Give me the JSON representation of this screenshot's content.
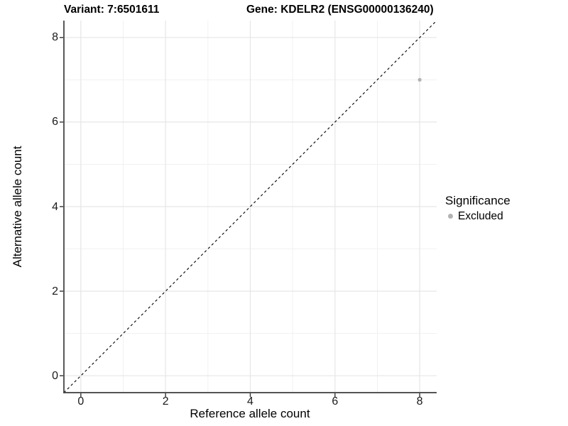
{
  "chart_data": {
    "type": "scatter",
    "title_left": "Variant: 7:6501611",
    "title_right": "Gene: KDELR2 (ENSG00000136240)",
    "xlabel": "Reference allele count",
    "ylabel": "Alternative allele count",
    "xlim": [
      -0.4,
      8.4
    ],
    "ylim": [
      -0.4,
      8.4
    ],
    "xticks": [
      0,
      2,
      4,
      6,
      8
    ],
    "yticks": [
      0,
      2,
      4,
      6,
      8
    ],
    "xminor": [
      1,
      3,
      5,
      7
    ],
    "yminor": [
      1,
      3,
      5,
      7
    ],
    "grid": "on",
    "series": [
      {
        "name": "Excluded",
        "color": "#b3b3b3",
        "points": [
          {
            "x": 8,
            "y": 7
          }
        ]
      }
    ],
    "reference_line": {
      "slope": 1,
      "intercept": 0,
      "linetype": "dashed",
      "color": "#000000"
    },
    "legend": {
      "title": "Significance",
      "position": "right",
      "entries": [
        {
          "label": "Excluded",
          "color": "#b3b3b3"
        }
      ]
    }
  },
  "colors": {
    "background": "#ffffff",
    "grid_major": "#e6e6e6",
    "grid_minor": "#f1f1f1",
    "axis_line": "#3c3c3c",
    "tick_mark": "#333333",
    "point": "#b3b3b3"
  }
}
